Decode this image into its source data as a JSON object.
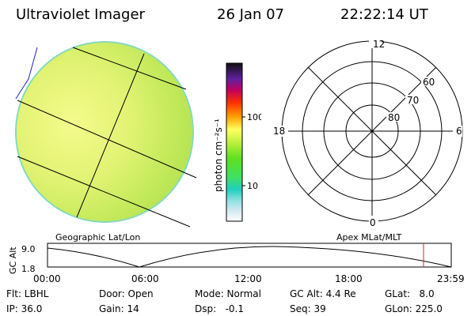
{
  "header": {
    "title": "Ultraviolet Imager",
    "date": "26 Jan 07",
    "time": "22:22:14 UT"
  },
  "colorbar": {
    "unit": "photon cm⁻²s⁻¹",
    "ticks": [
      "100",
      "10"
    ],
    "scale": "log"
  },
  "geographic_label": "Geographic Lat/Lon",
  "apex_label": "Apex MLat/MLT",
  "polar_plot": {
    "mlt_labels": {
      "top": "12",
      "right": "6",
      "bottom": "0",
      "left": "18"
    },
    "mlat_labels": [
      "60",
      "70",
      "80"
    ]
  },
  "altitude_plot": {
    "ylabel": "GC Alt",
    "yticks": [
      "9.0",
      "1.8"
    ],
    "xticks": [
      "00:00",
      "06:00",
      "12:00",
      "18:00",
      "23:59"
    ],
    "marker_time": "22:22",
    "marker_color": "#c03030"
  },
  "status": {
    "row1": {
      "flt": "Flt: LBHL",
      "door": "Door: Open",
      "mode": "Mode: Normal",
      "gcalt": "GC Alt: 4.4 Re",
      "glat": "GLat:   8.0"
    },
    "row2": {
      "ip": "IP: 36.0",
      "gain": "Gain: 14",
      "dsp": "Dsp:   -0.1",
      "seq": "Seq: 39",
      "glon": "GLon: 225.0"
    }
  }
}
